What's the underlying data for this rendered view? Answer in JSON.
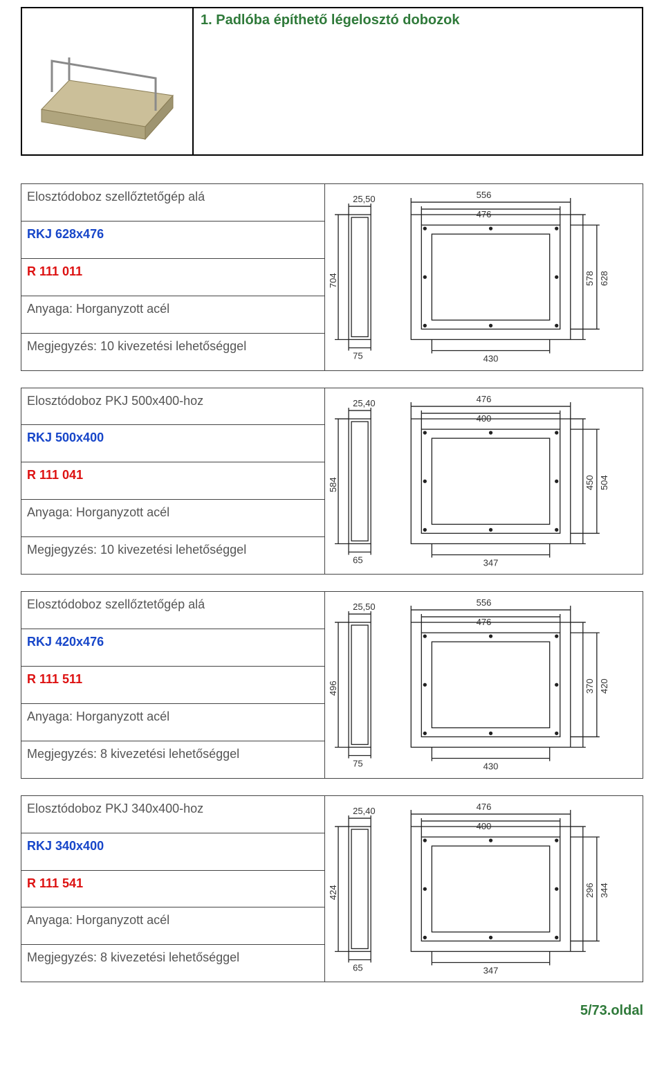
{
  "header": {
    "title": "1. Padlóba építhető légelosztó dobozok"
  },
  "products": [
    {
      "desc": "Elosztódoboz szellőztetőgép alá",
      "model": "RKJ 628x476",
      "code": "R 111 011",
      "material": "Anyaga: Horganyzott acél",
      "note": "Megjegyzés: 10 kivezetési lehetőséggel",
      "dims": {
        "side_w": "25,50",
        "side_h": "704",
        "side_b": "75",
        "top_out": "556",
        "top_in": "476",
        "r_out": "628",
        "r_in": "578",
        "bot": "430"
      }
    },
    {
      "desc": "Elosztódoboz PKJ 500x400-hoz",
      "model": "RKJ 500x400",
      "code": "R 111 041",
      "material": "Anyaga: Horganyzott acél",
      "note": "Megjegyzés: 10 kivezetési lehetőséggel",
      "dims": {
        "side_w": "25,40",
        "side_h": "584",
        "side_b": "65",
        "top_out": "476",
        "top_in": "400",
        "r_out": "504",
        "r_in": "450",
        "bot": "347"
      }
    },
    {
      "desc": "Elosztódoboz szellőztetőgép alá",
      "model": "RKJ 420x476",
      "code": "R 111 511",
      "material": "Anyaga: Horganyzott acél",
      "note": "Megjegyzés: 8 kivezetési lehetőséggel",
      "dims": {
        "side_w": "25,50",
        "side_h": "496",
        "side_b": "75",
        "top_out": "556",
        "top_in": "476",
        "r_out": "420",
        "r_in": "370",
        "bot": "430"
      }
    },
    {
      "desc": "Elosztódoboz PKJ 340x400-hoz",
      "model": "RKJ 340x400",
      "code": "R 111 541",
      "material": "Anyaga: Horganyzott acél",
      "note": "Megjegyzés: 8 kivezetési lehetőséggel",
      "dims": {
        "side_w": "25,40",
        "side_h": "424",
        "side_b": "65",
        "top_out": "476",
        "top_in": "400",
        "r_out": "344",
        "r_in": "296",
        "bot": "347"
      }
    }
  ],
  "footer": {
    "page": "5/73.oldal"
  },
  "style": {
    "colors": {
      "title": "#2f7a3a",
      "model": "#1746c9",
      "code": "#d11a1a",
      "text": "#555555",
      "border": "#000000",
      "cellborder": "#444444",
      "background": "#ffffff"
    },
    "fonts": {
      "family": "Arial",
      "title_size_pt": 15,
      "body_size_pt": 13
    },
    "drawing": {
      "line_color": "#222222",
      "line_width": 1.2,
      "dim_fontsize": 12,
      "side_view_fill": "#ffffff",
      "front_fill": "#ffffff"
    }
  }
}
